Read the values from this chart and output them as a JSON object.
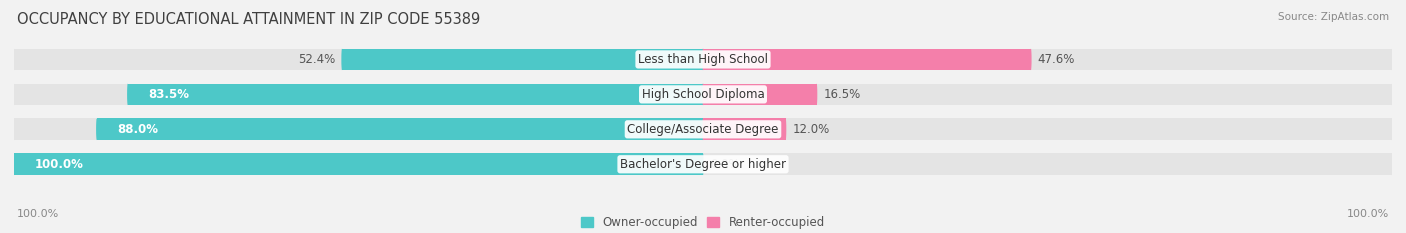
{
  "title": "OCCUPANCY BY EDUCATIONAL ATTAINMENT IN ZIP CODE 55389",
  "source": "Source: ZipAtlas.com",
  "categories": [
    "Less than High School",
    "High School Diploma",
    "College/Associate Degree",
    "Bachelor's Degree or higher"
  ],
  "owner_values": [
    52.4,
    83.5,
    88.0,
    100.0
  ],
  "renter_values": [
    47.6,
    16.5,
    12.0,
    0.0
  ],
  "owner_color": "#4dc8c8",
  "renter_color": "#f47faa",
  "background_color": "#f2f2f2",
  "bar_bg_color": "#e4e4e4",
  "title_fontsize": 10.5,
  "source_fontsize": 7.5,
  "label_fontsize": 8.5,
  "value_fontsize": 8.5,
  "axis_label_fontsize": 8,
  "legend_fontsize": 8.5,
  "bar_height": 0.62,
  "x_axis_label_left": "100.0%",
  "x_axis_label_right": "100.0%"
}
